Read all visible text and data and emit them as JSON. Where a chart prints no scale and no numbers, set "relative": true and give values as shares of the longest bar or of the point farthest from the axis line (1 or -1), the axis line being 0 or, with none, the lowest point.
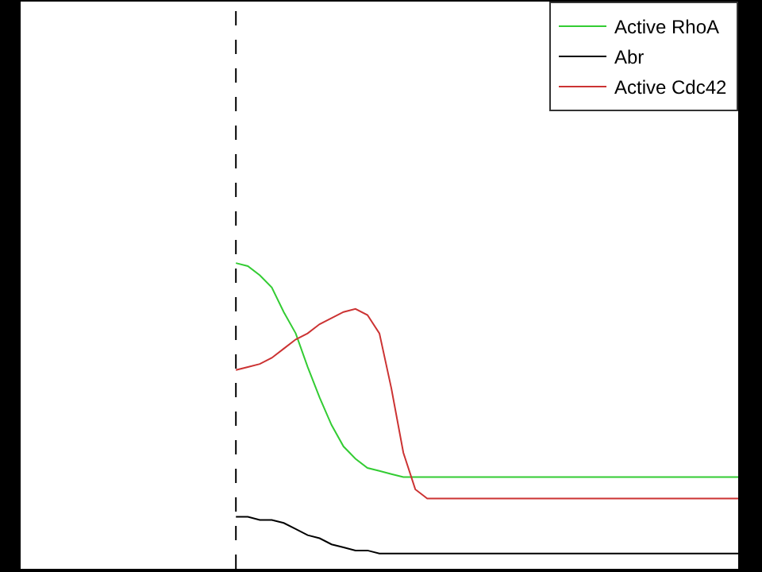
{
  "chart_data": {
    "type": "line",
    "relative": true,
    "legend": "top right",
    "marker": "none",
    "line_style": "solid",
    "categories": [
      null,
      null,
      null,
      null,
      null,
      null,
      null,
      null,
      null,
      null,
      null,
      null,
      null,
      null,
      null,
      null,
      null,
      null,
      null,
      null,
      null,
      null,
      null,
      null,
      null,
      null,
      null,
      null,
      null,
      null,
      null,
      null,
      null,
      null,
      null,
      null,
      null,
      null,
      null,
      null,
      null,
      null,
      null,
      null,
      null,
      null,
      null,
      null,
      null,
      null,
      null,
      null,
      null,
      null,
      null,
      null,
      null,
      null,
      null,
      null,
      null
    ],
    "series": [
      {
        "name": "Active RhoA",
        "color": "#33cc33",
        "values": [
          null,
          null,
          null,
          null,
          null,
          null,
          null,
          null,
          null,
          null,
          null,
          null,
          null,
          null,
          null,
          null,
          null,
          null,
          1,
          0.99,
          0.96,
          0.92,
          0.84,
          0.77,
          0.66,
          0.56,
          0.47,
          0.4,
          0.36,
          0.33,
          0.32,
          0.31,
          0.3,
          0.3,
          0.3,
          0.3,
          0.3,
          0.3,
          0.3,
          0.3,
          0.3,
          0.3,
          0.3,
          0.3,
          0.3,
          0.3,
          0.3,
          0.3,
          0.3,
          0.3,
          0.3,
          0.3,
          0.3,
          0.3,
          0.3,
          0.3,
          0.3,
          0.3,
          0.3,
          0.3,
          0.3
        ]
      },
      {
        "name": "Abr",
        "color": "#000000",
        "values": [
          null,
          null,
          null,
          null,
          null,
          null,
          null,
          null,
          null,
          null,
          null,
          null,
          null,
          null,
          null,
          null,
          null,
          null,
          0.17,
          0.17,
          0.16,
          0.16,
          0.15,
          0.13,
          0.11,
          0.1,
          0.08,
          0.07,
          0.06,
          0.06,
          0.05,
          0.05,
          0.05,
          0.05,
          0.05,
          0.05,
          0.05,
          0.05,
          0.05,
          0.05,
          0.05,
          0.05,
          0.05,
          0.05,
          0.05,
          0.05,
          0.05,
          0.05,
          0.05,
          0.05,
          0.05,
          0.05,
          0.05,
          0.05,
          0.05,
          0.05,
          0.05,
          0.05,
          0.05,
          0.05,
          0.05
        ]
      },
      {
        "name": "Active Cdc42",
        "color": "#cc3333",
        "values": [
          null,
          null,
          null,
          null,
          null,
          null,
          null,
          null,
          null,
          null,
          null,
          null,
          null,
          null,
          null,
          null,
          null,
          null,
          0.65,
          0.66,
          0.67,
          0.69,
          0.72,
          0.75,
          0.77,
          0.8,
          0.82,
          0.84,
          0.85,
          0.83,
          0.77,
          0.59,
          0.38,
          0.26,
          0.23,
          0.23,
          0.23,
          0.23,
          0.23,
          0.23,
          0.23,
          0.23,
          0.23,
          0.23,
          0.23,
          0.23,
          0.23,
          0.23,
          0.23,
          0.23,
          0.23,
          0.23,
          0.23,
          0.23,
          0.23,
          0.23,
          0.23,
          0.23,
          0.23,
          0.23,
          0.23
        ]
      }
    ]
  }
}
